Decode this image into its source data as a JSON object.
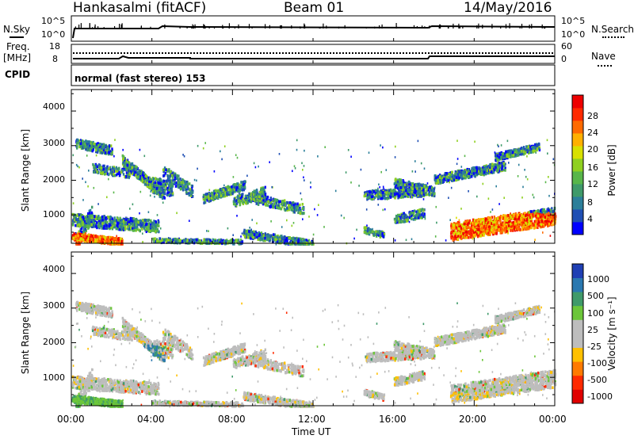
{
  "header": {
    "station": "Hankasalmi (fitACF)",
    "beam": "Beam 01",
    "date": "14/May/2016"
  },
  "top_panels": {
    "nsky_label": "N.Sky",
    "nsearch_label": "N.Search",
    "nsky_ticks": [
      "10^5",
      "10^0"
    ],
    "nsearch_ticks": [
      "10^5",
      "10^0"
    ],
    "freq_label_line1": "Freq.",
    "freq_label_line2": "[MHz]",
    "freq_ticks": [
      "18",
      "8"
    ],
    "nave_label": "Nave",
    "nave_ticks": [
      "60",
      "0"
    ],
    "cpid_label": "CPID",
    "cpid_text": "normal (fast stereo) 153"
  },
  "chart_data": [
    {
      "type": "heatmap",
      "name": "power",
      "ylabel": "Slant Range [km]",
      "yticks": [
        "4000",
        "3000",
        "2000",
        "1000"
      ],
      "ylim": [
        180,
        4620
      ],
      "xlim": [
        "00:00",
        "24:00"
      ],
      "colorbar": {
        "label": "Power [dB]",
        "ticks": [
          "28",
          "24",
          "20",
          "16",
          "12",
          "8",
          "4"
        ],
        "colors": [
          "#0000ff",
          "#1f4fb4",
          "#2c7f9a",
          "#3f9a6a",
          "#58b64a",
          "#8fd020",
          "#d8e000",
          "#ffb000",
          "#ff6a00",
          "#ff2a00",
          "#ee0000"
        ]
      }
    },
    {
      "type": "heatmap",
      "name": "velocity",
      "ylabel": "Slant Range [km]",
      "yticks": [
        "4000",
        "3000",
        "2000",
        "1000"
      ],
      "ylim": [
        180,
        4620
      ],
      "xlim": [
        "00:00",
        "24:00"
      ],
      "colorbar": {
        "label": "Velocity [m s⁻¹]",
        "ticks": [
          "1000",
          "500",
          "100",
          "25",
          "-25",
          "-100",
          "-500",
          "-1000"
        ],
        "colors": [
          "#1f3fb4",
          "#2a78b0",
          "#3f9a6a",
          "#6cc63a",
          "#bdbdbd",
          "#bdbdbd",
          "#ffc000",
          "#ff7a00",
          "#ff2a00",
          "#e00000"
        ]
      }
    }
  ],
  "xaxis": {
    "ticks": [
      "00:00",
      "04:00",
      "08:00",
      "12:00",
      "16:00",
      "20:00",
      "00:00"
    ],
    "label": "Time UT"
  }
}
